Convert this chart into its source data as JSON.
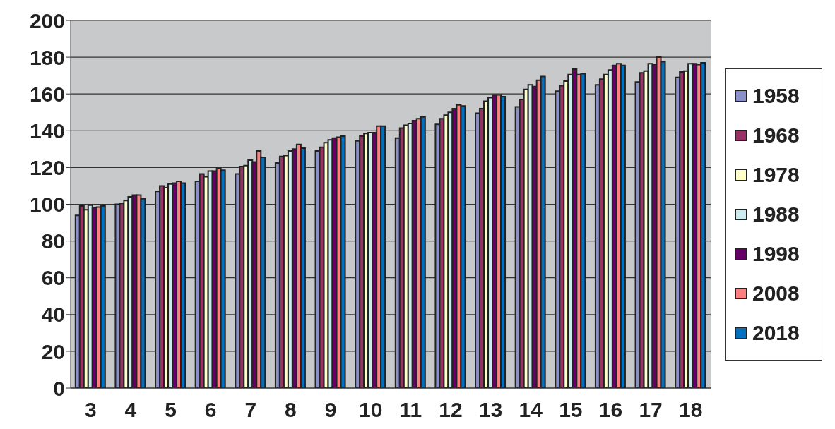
{
  "chart_data": {
    "type": "bar",
    "categories": [
      "3",
      "4",
      "5",
      "6",
      "7",
      "8",
      "9",
      "10",
      "11",
      "12",
      "13",
      "14",
      "15",
      "16",
      "17",
      "18"
    ],
    "series": [
      {
        "name": "1958",
        "color": "#8a90c8",
        "values": [
          94,
          100,
          107,
          112.5,
          116.5,
          122.5,
          129,
          134.5,
          136,
          143.5,
          149.5,
          153,
          161.5,
          165,
          166.5,
          169
        ]
      },
      {
        "name": "1968",
        "color": "#993366",
        "values": [
          99,
          100.5,
          110,
          116.5,
          120.5,
          126,
          131,
          137,
          141.5,
          146.5,
          152,
          157,
          164.5,
          168,
          171.5,
          172
        ]
      },
      {
        "name": "1978",
        "color": "#ffffcc",
        "values": [
          97,
          102,
          109,
          115,
          121,
          126.5,
          133.5,
          138.5,
          143,
          148.5,
          156,
          162.5,
          167,
          170.5,
          172.5,
          172.5
        ]
      },
      {
        "name": "1988",
        "color": "#ccecf0",
        "values": [
          99.5,
          104,
          111,
          118,
          124,
          129,
          135,
          139,
          144,
          150,
          158,
          165,
          170.5,
          173,
          176.5,
          176.5
        ]
      },
      {
        "name": "1998",
        "color": "#660066",
        "values": [
          98,
          105,
          111.5,
          118,
          123,
          130,
          136,
          139,
          145.5,
          152,
          159.5,
          164,
          173.5,
          175.5,
          176,
          176.5
        ]
      },
      {
        "name": "2008",
        "color": "#ff8080",
        "values": [
          98.5,
          105,
          112.5,
          119.5,
          129,
          132.5,
          136.5,
          142.5,
          146.5,
          154,
          159.5,
          167.5,
          170.5,
          176.5,
          180,
          176
        ]
      },
      {
        "name": "2018",
        "color": "#0070c0",
        "values": [
          99,
          103,
          111.5,
          118.5,
          125.5,
          130.5,
          137,
          142.5,
          147.5,
          153.5,
          158.5,
          169.5,
          171,
          175.5,
          177.5,
          177
        ]
      }
    ],
    "ylim": [
      0,
      200
    ],
    "yticks": [
      0,
      20,
      40,
      60,
      80,
      100,
      120,
      140,
      160,
      180,
      200
    ],
    "grid": "y",
    "legend": "right"
  }
}
